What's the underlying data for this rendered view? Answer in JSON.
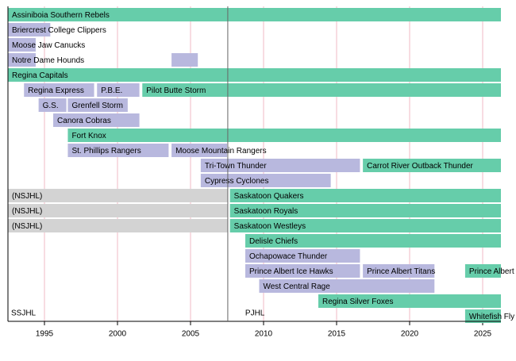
{
  "chart_data": {
    "type": "timeline",
    "xlim": [
      1992.5,
      2026.25
    ],
    "xticks": [
      1995,
      2000,
      2005,
      2010,
      2015,
      2020,
      2025
    ],
    "grid": true,
    "divider": 2007.55,
    "annotations": [
      "SSJHL",
      "PJHL"
    ],
    "rows": [
      {
        "bars": [
          {
            "label": "Assiniboia Southern Rebels",
            "start": 1992.5,
            "end": 2026.25,
            "color": "#66cdaa"
          }
        ]
      },
      {
        "bars": [
          {
            "label": "Briercrest College Clippers",
            "start": 1992.5,
            "end": 1995.4,
            "color": "#b8b8de"
          }
        ]
      },
      {
        "bars": [
          {
            "label": "Moose Jaw Canucks",
            "start": 1992.5,
            "end": 1994.4,
            "color": "#b8b8de"
          }
        ]
      },
      {
        "bars": [
          {
            "label": "Notre Dame Hounds",
            "start": 1992.5,
            "end": 1994.4,
            "color": "#b8b8de"
          },
          {
            "label": null,
            "start": 2003.7,
            "end": 2005.5,
            "color": "#b8b8de"
          }
        ]
      },
      {
        "bars": [
          {
            "label": "Regina Capitals",
            "start": 1992.5,
            "end": 2026.25,
            "color": "#66cdaa"
          }
        ]
      },
      {
        "bars": [
          {
            "label": "Regina Express",
            "start": 1993.6,
            "end": 1998.4,
            "color": "#b8b8de"
          },
          {
            "label": "P.B.E.",
            "start": 1998.6,
            "end": 2001.5,
            "color": "#b8b8de"
          },
          {
            "label": "Pilot Butte Storm",
            "start": 2001.7,
            "end": 2026.25,
            "color": "#66cdaa"
          }
        ]
      },
      {
        "bars": [
          {
            "label": "G.S.",
            "start": 1994.6,
            "end": 1996.5,
            "color": "#b8b8de"
          },
          {
            "label": "Grenfell Storm",
            "start": 1996.6,
            "end": 2000.7,
            "color": "#b8b8de"
          }
        ]
      },
      {
        "bars": [
          {
            "label": "Canora Cobras",
            "start": 1995.6,
            "end": 2001.5,
            "color": "#b8b8de"
          }
        ]
      },
      {
        "bars": [
          {
            "label": "Fort Knox",
            "start": 1996.6,
            "end": 2026.25,
            "color": "#66cdaa"
          }
        ]
      },
      {
        "bars": [
          {
            "label": "St. Phillips Rangers",
            "start": 1996.6,
            "end": 2003.5,
            "color": "#b8b8de"
          },
          {
            "label": "Moose Mountain Rangers",
            "start": 2003.7,
            "end": 2007.5,
            "color": "#b8b8de"
          }
        ]
      },
      {
        "bars": [
          {
            "label": "Tri-Town Thunder",
            "start": 2005.7,
            "end": 2016.6,
            "color": "#b8b8de"
          },
          {
            "label": "Carrot River Outback Thunder",
            "start": 2016.8,
            "end": 2026.25,
            "color": "#66cdaa"
          }
        ]
      },
      {
        "bars": [
          {
            "label": "Cypress Cyclones",
            "start": 2005.7,
            "end": 2014.6,
            "color": "#b8b8de"
          }
        ]
      },
      {
        "bars": [
          {
            "label": "(NSJHL)",
            "start": 1992.5,
            "end": 2007.55,
            "color": "#d3d3d3"
          },
          {
            "label": "Saskatoon Quakers",
            "start": 2007.7,
            "end": 2026.25,
            "color": "#66cdaa"
          }
        ]
      },
      {
        "bars": [
          {
            "label": "(NSJHL)",
            "start": 1992.5,
            "end": 2007.55,
            "color": "#d3d3d3"
          },
          {
            "label": "Saskatoon Royals",
            "start": 2007.7,
            "end": 2026.25,
            "color": "#66cdaa"
          }
        ]
      },
      {
        "bars": [
          {
            "label": "(NSJHL)",
            "start": 1992.5,
            "end": 2007.55,
            "color": "#d3d3d3"
          },
          {
            "label": "Saskatoon Westleys",
            "start": 2007.7,
            "end": 2026.25,
            "color": "#66cdaa"
          }
        ]
      },
      {
        "bars": [
          {
            "label": "Delisle Chiefs",
            "start": 2008.75,
            "end": 2026.25,
            "color": "#66cdaa"
          }
        ]
      },
      {
        "bars": [
          {
            "label": "Ochapowace Thunder",
            "start": 2008.75,
            "end": 2016.6,
            "color": "#b8b8de"
          }
        ]
      },
      {
        "bars": [
          {
            "label": "Prince Albert Ice Hawks",
            "start": 2008.75,
            "end": 2016.6,
            "color": "#b8b8de"
          },
          {
            "label": "Prince Albert Titans",
            "start": 2016.8,
            "end": 2021.7,
            "color": "#b8b8de"
          },
          {
            "label": "Prince Albert",
            "start": 2023.8,
            "end": 2026.25,
            "color": "#66cdaa"
          }
        ]
      },
      {
        "bars": [
          {
            "label": "West Central Rage",
            "start": 2009.7,
            "end": 2021.7,
            "color": "#b8b8de"
          }
        ]
      },
      {
        "bars": [
          {
            "label": "Regina Silver Foxes",
            "start": 2013.75,
            "end": 2026.25,
            "color": "#66cdaa"
          }
        ]
      },
      {
        "bars": [
          {
            "label": "Whitefish Fly",
            "start": 2023.8,
            "end": 2026.25,
            "color": "#66cdaa"
          }
        ]
      }
    ]
  }
}
